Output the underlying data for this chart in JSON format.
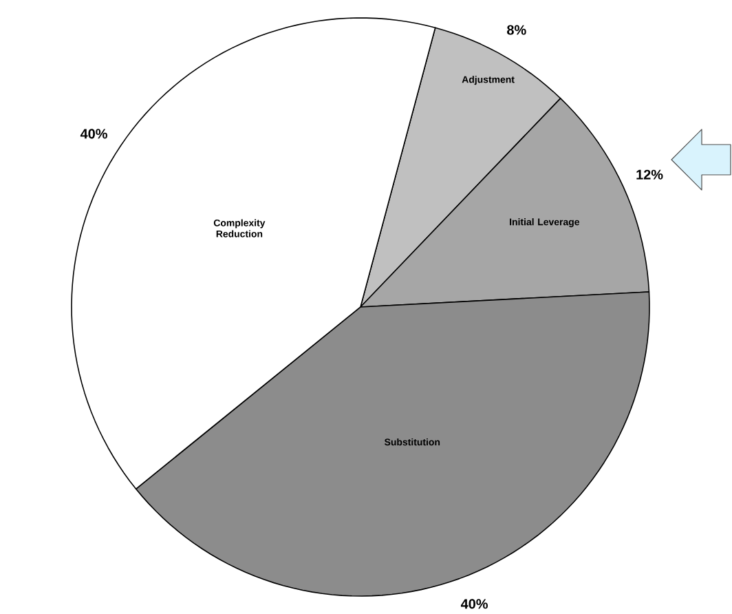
{
  "chart_data": {
    "type": "pie",
    "categories": [
      "Adjustment",
      "Initial Leverage",
      "Substitution",
      "Complexity Reduction"
    ],
    "values": [
      8,
      12,
      40,
      40
    ],
    "value_labels": [
      "8%",
      "12%",
      "40%",
      "40%"
    ],
    "colors": [
      "#c0c0c0",
      "#a6a6a6",
      "#8c8c8c",
      "#ffffff"
    ]
  }
}
